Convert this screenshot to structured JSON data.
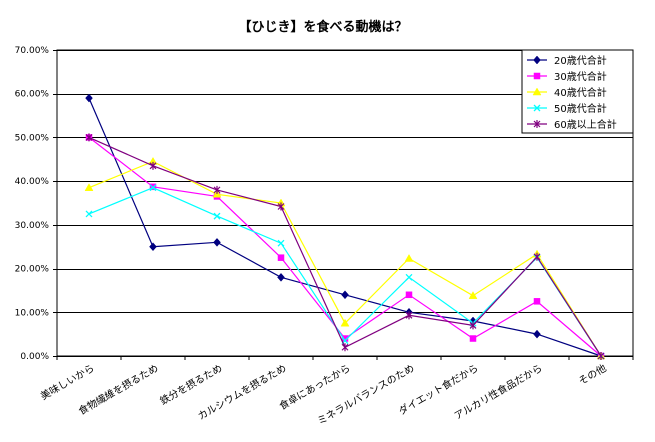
{
  "chart_data": {
    "type": "line",
    "title": "【ひじき】を食べる動機は？",
    "xlabel": "",
    "ylabel": "",
    "ylim": [
      0,
      70
    ],
    "y_ticks": [
      "0.00%",
      "10.00%",
      "20.00%",
      "30.00%",
      "40.00%",
      "50.00%",
      "60.00%",
      "70.00%"
    ],
    "grid": true,
    "legend_position": "top-right",
    "categories": [
      "美味しいから",
      "食物繊維を摂るため",
      "鉄分を摂るため",
      "カルシウムを摂るため",
      "食卓にあったから",
      "ミネラルバランスのため",
      "ダイエット食だから",
      "アルカリ性食品だから",
      "その他"
    ],
    "series": [
      {
        "name": "20歳代合計",
        "color": "#000080",
        "marker": "diamond",
        "values": [
          59.0,
          25.0,
          26.0,
          18.0,
          14.0,
          10.0,
          8.0,
          5.0,
          0.0
        ]
      },
      {
        "name": "30歳代合計",
        "color": "#FF00FF",
        "marker": "square",
        "values": [
          50.0,
          38.7,
          36.5,
          22.5,
          4.0,
          14.0,
          4.0,
          12.5,
          0.0
        ]
      },
      {
        "name": "40歳代合計",
        "color": "#FFFF00",
        "marker": "triangle",
        "values": [
          38.5,
          44.5,
          37.0,
          35.0,
          7.5,
          22.3,
          13.8,
          23.3,
          0.0
        ]
      },
      {
        "name": "50歳代合計",
        "color": "#00FFFF",
        "marker": "x",
        "values": [
          32.5,
          38.5,
          32.0,
          25.8,
          3.5,
          18.0,
          7.5,
          22.5,
          0.0
        ]
      },
      {
        "name": "60歳以上合計",
        "color": "#800080",
        "marker": "star",
        "values": [
          50.0,
          43.5,
          38.0,
          34.2,
          2.0,
          9.3,
          7.0,
          22.7,
          0.0
        ]
      }
    ]
  }
}
